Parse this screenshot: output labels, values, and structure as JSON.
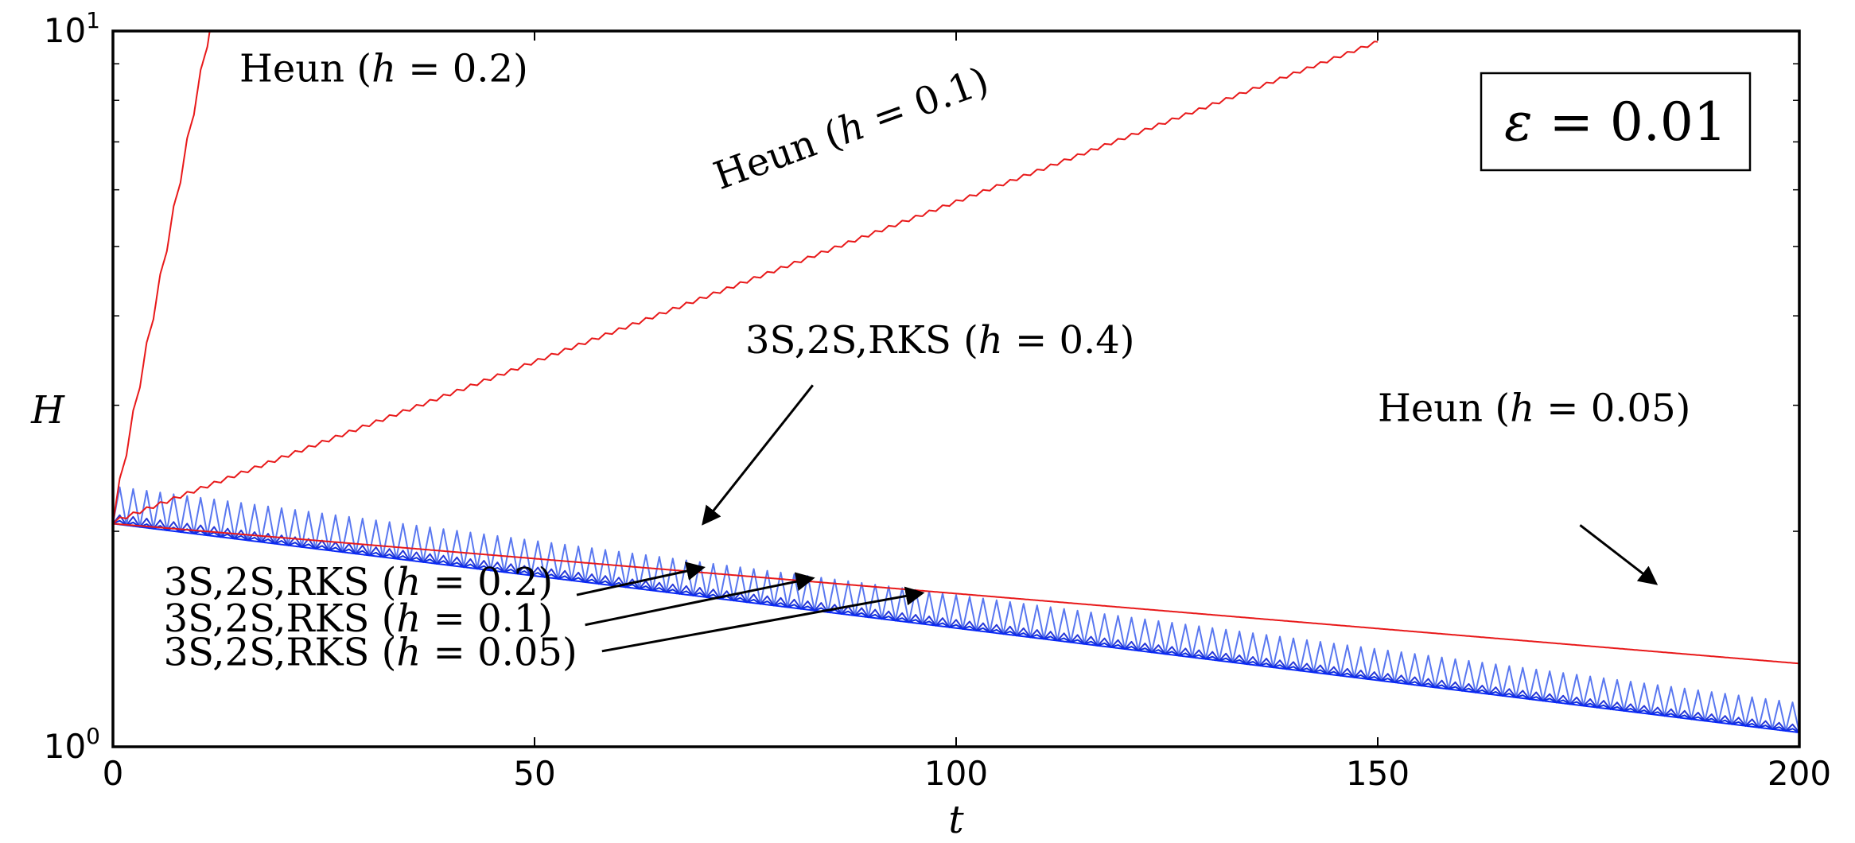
{
  "chart_data": {
    "type": "line",
    "title": "",
    "xlabel": "t",
    "ylabel": "H",
    "xlim": [
      0,
      200
    ],
    "ylim": [
      1,
      10
    ],
    "yscale": "log",
    "grid": false,
    "x_ticks": [
      0,
      50,
      100,
      150,
      200
    ],
    "x_tick_labels": [
      "0",
      "50",
      "100",
      "150",
      "200"
    ],
    "y_ticks": [
      {
        "value": 1,
        "base": "10",
        "exp": "0"
      },
      {
        "value": 10,
        "base": "10",
        "exp": "1"
      }
    ],
    "epsilon_box": {
      "label": "ε = 0.01",
      "symbol": "ε",
      "rest": " = 0.01"
    },
    "series": [
      {
        "name": "Heun (h = 0.2)",
        "color": "#e8191a",
        "H0": 2.05,
        "growth_rate": 0.137,
        "osc_amp": 0.035,
        "period": 1.6,
        "t_max": 12.8
      },
      {
        "name": "Heun (h = 0.1)",
        "color": "#e8191a",
        "H0": 2.05,
        "growth_rate": 0.0103,
        "osc_amp": 0.012,
        "period": 1.6,
        "t_max": 150
      },
      {
        "name": "Heun (h = 0.05)",
        "color": "#e8191a",
        "H0": 2.05,
        "growth_rate": -0.00225,
        "osc_amp": 0.0,
        "period": 1.6,
        "t_max": 200
      },
      {
        "name": "3S,2S,RKS (h = 0.4)",
        "color": "#5a78f0",
        "H0": 2.05,
        "growth_rate": -0.00336,
        "osc_amp": 0.12,
        "period": 1.6,
        "t_max": 200
      },
      {
        "name": "3S,2S,RKS (h = 0.2)",
        "color": "#2638d8",
        "H0": 2.05,
        "growth_rate": -0.00336,
        "osc_amp": 0.03,
        "period": 1.6,
        "t_max": 200
      },
      {
        "name": "3S,2S,RKS (h = 0.1)",
        "color": "#1030e0",
        "H0": 2.05,
        "growth_rate": -0.00336,
        "osc_amp": 0.012,
        "period": 1.6,
        "t_max": 200
      },
      {
        "name": "3S,2S,RKS (h = 0.05)",
        "color": "#0a28f5",
        "H0": 2.05,
        "growth_rate": -0.00336,
        "osc_amp": 0.0,
        "period": 1.6,
        "t_max": 200
      }
    ],
    "annotations": [
      {
        "id": "heun02",
        "pre": "Heun (",
        "var": "h",
        "post": " = 0.2)",
        "text_at": [
          15,
          8.5
        ],
        "rotate": 0,
        "arrow": null
      },
      {
        "id": "heun01",
        "pre": "Heun (",
        "var": "h",
        "post": " = 0.1)",
        "text_at": [
          72,
          6.0
        ],
        "rotate": -20,
        "arrow": null
      },
      {
        "id": "rks04",
        "pre": "3S,2S,RKS (",
        "var": "h",
        "post": " = 0.4)",
        "text_at": [
          75,
          3.55
        ],
        "rotate": 0,
        "arrow": {
          "from": [
            83,
            3.2
          ],
          "to": [
            70,
            2.05
          ]
        }
      },
      {
        "id": "heun005",
        "pre": "Heun (",
        "var": "h",
        "post": " = 0.05)",
        "text_at": [
          150,
          2.85
        ],
        "rotate": 0,
        "arrow": {
          "from": [
            174,
            2.04
          ],
          "to": [
            183,
            1.69
          ]
        }
      },
      {
        "id": "rks02",
        "pre": "3S,2S,RKS (",
        "var": "h",
        "post": " = 0.2)",
        "text_at": [
          6,
          1.63
        ],
        "rotate": 0,
        "arrow": {
          "from": [
            55,
            1.63
          ],
          "to": [
            70,
            1.78
          ]
        }
      },
      {
        "id": "rks01",
        "pre": "3S,2S,RKS (",
        "var": "h",
        "post": " = 0.1)",
        "text_at": [
          6,
          1.45
        ],
        "rotate": 0,
        "arrow": {
          "from": [
            56,
            1.48
          ],
          "to": [
            83,
            1.72
          ]
        }
      },
      {
        "id": "rks005",
        "pre": "3S,2S,RKS (",
        "var": "h",
        "post": " = 0.05)",
        "text_at": [
          6,
          1.3
        ],
        "rotate": 0,
        "arrow": {
          "from": [
            58,
            1.36
          ],
          "to": [
            96,
            1.64
          ]
        }
      }
    ]
  }
}
